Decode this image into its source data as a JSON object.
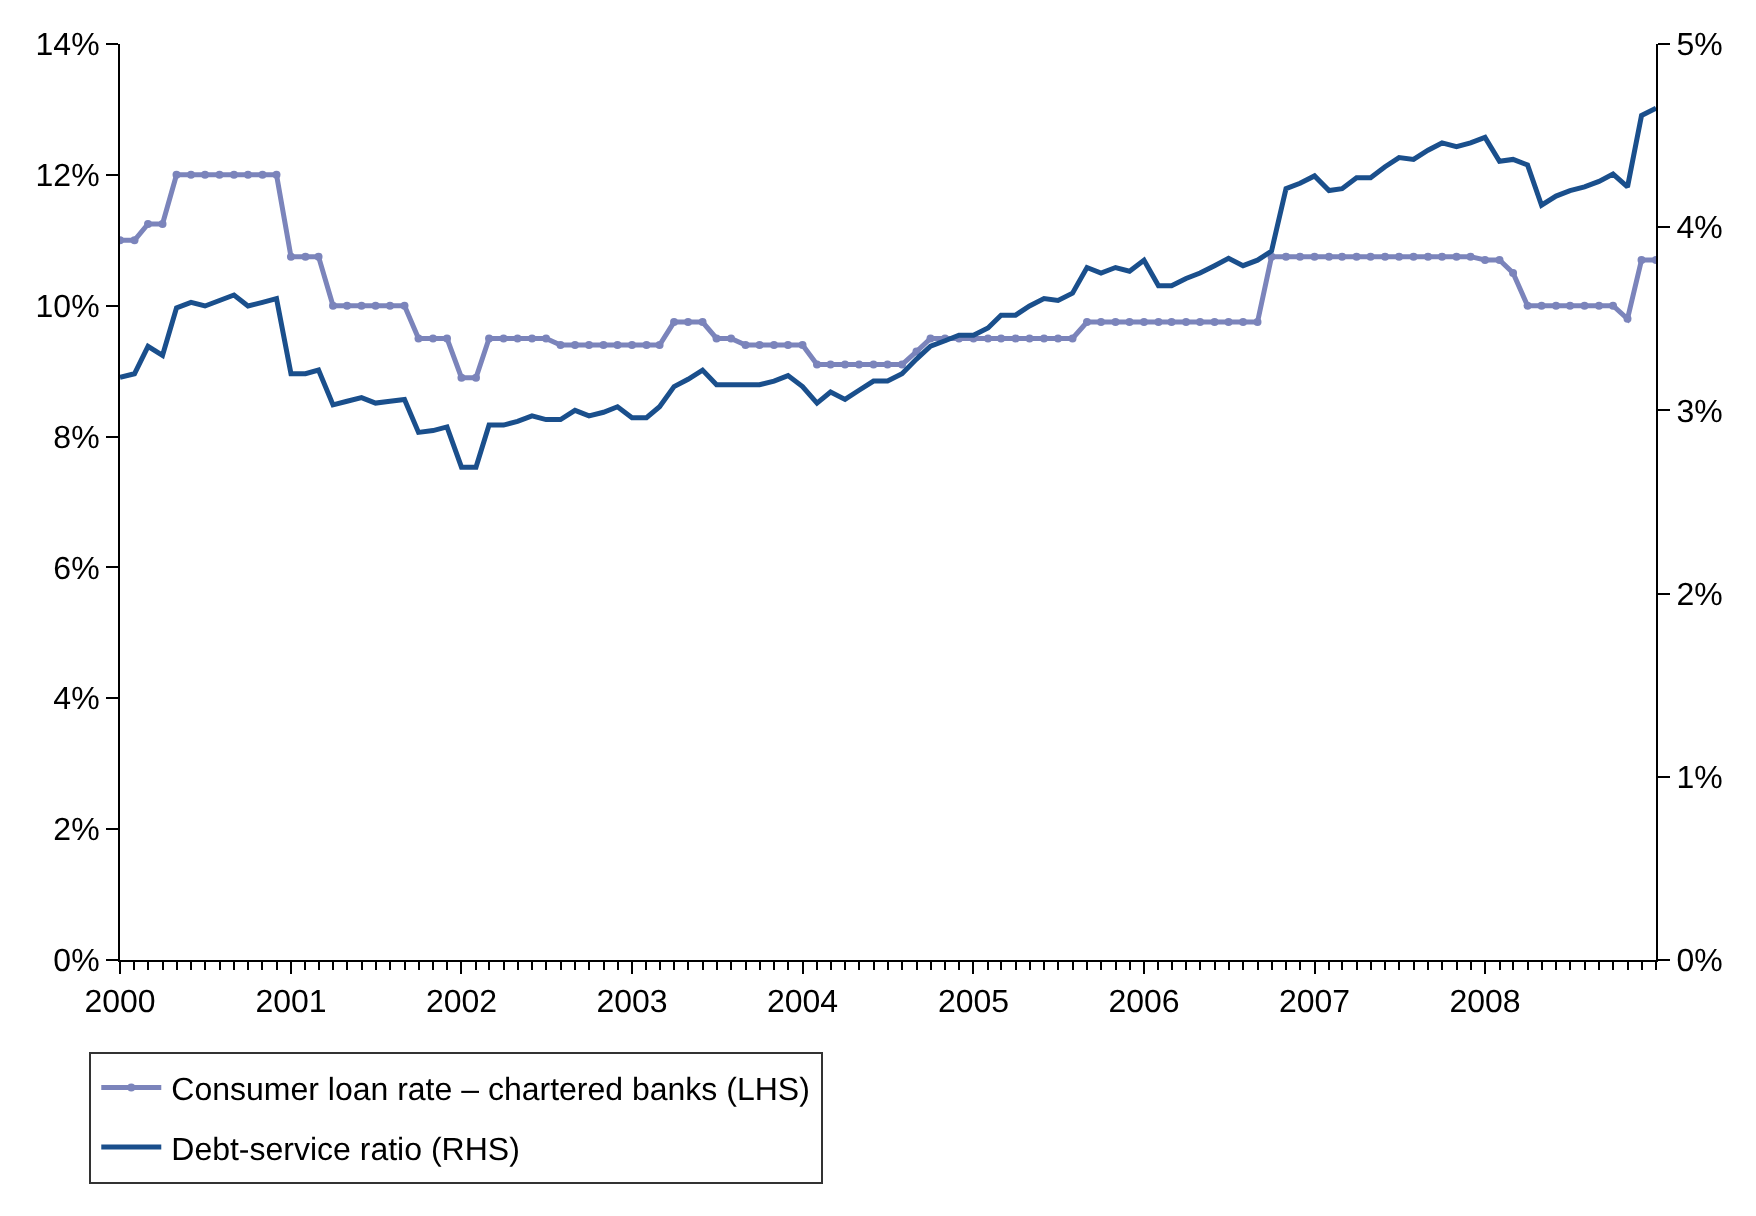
{
  "chart_data": {
    "type": "line",
    "x": [
      "2000-01",
      "2000-02",
      "2000-03",
      "2000-04",
      "2000-05",
      "2000-06",
      "2000-07",
      "2000-08",
      "2000-09",
      "2000-10",
      "2000-11",
      "2000-12",
      "2001-01",
      "2001-02",
      "2001-03",
      "2001-04",
      "2001-05",
      "2001-06",
      "2001-07",
      "2001-08",
      "2001-09",
      "2001-10",
      "2001-11",
      "2001-12",
      "2002-01",
      "2002-02",
      "2002-03",
      "2002-04",
      "2002-05",
      "2002-06",
      "2002-07",
      "2002-08",
      "2002-09",
      "2002-10",
      "2002-11",
      "2002-12",
      "2003-01",
      "2003-02",
      "2003-03",
      "2003-04",
      "2003-05",
      "2003-06",
      "2003-07",
      "2003-08",
      "2003-09",
      "2003-10",
      "2003-11",
      "2003-12",
      "2004-01",
      "2004-02",
      "2004-03",
      "2004-04",
      "2004-05",
      "2004-06",
      "2004-07",
      "2004-08",
      "2004-09",
      "2004-10",
      "2004-11",
      "2004-12",
      "2005-01",
      "2005-02",
      "2005-03",
      "2005-04",
      "2005-05",
      "2005-06",
      "2005-07",
      "2005-08",
      "2005-09",
      "2005-10",
      "2005-11",
      "2005-12",
      "2006-01",
      "2006-02",
      "2006-03",
      "2006-04",
      "2006-05",
      "2006-06",
      "2006-07",
      "2006-08",
      "2006-09",
      "2006-10",
      "2006-11",
      "2006-12",
      "2007-01",
      "2007-02",
      "2007-03",
      "2007-04",
      "2007-05",
      "2007-06",
      "2007-07",
      "2007-08",
      "2007-09",
      "2007-10",
      "2007-11",
      "2007-12",
      "2008-01",
      "2008-02",
      "2008-03",
      "2008-04",
      "2008-05",
      "2008-06",
      "2008-07",
      "2008-08",
      "2008-09",
      "2008-10",
      "2008-11",
      "2008-12",
      "2009-01"
    ],
    "series": [
      {
        "name": "Consumer loan rate – chartered banks (LHS)",
        "color": "#7b84bb",
        "marker": "circle",
        "values": [
          11.0,
          11.0,
          11.25,
          11.25,
          12.0,
          12.0,
          12.0,
          12.0,
          12.0,
          12.0,
          12.0,
          12.0,
          10.75,
          10.75,
          10.75,
          10.0,
          10.0,
          10.0,
          10.0,
          10.0,
          10.0,
          9.5,
          9.5,
          9.5,
          8.9,
          8.9,
          9.5,
          9.5,
          9.5,
          9.5,
          9.5,
          9.4,
          9.4,
          9.4,
          9.4,
          9.4,
          9.4,
          9.4,
          9.4,
          9.75,
          9.75,
          9.75,
          9.5,
          9.5,
          9.4,
          9.4,
          9.4,
          9.4,
          9.4,
          9.1,
          9.1,
          9.1,
          9.1,
          9.1,
          9.1,
          9.1,
          9.3,
          9.5,
          9.5,
          9.5,
          9.5,
          9.5,
          9.5,
          9.5,
          9.5,
          9.5,
          9.5,
          9.5,
          9.75,
          9.75,
          9.75,
          9.75,
          9.75,
          9.75,
          9.75,
          9.75,
          9.75,
          9.75,
          9.75,
          9.75,
          9.75,
          10.75,
          10.75,
          10.75,
          10.75,
          10.75,
          10.75,
          10.75,
          10.75,
          10.75,
          10.75,
          10.75,
          10.75,
          10.75,
          10.75,
          10.75,
          10.7,
          10.7,
          10.5,
          10.0,
          10.0,
          10.0,
          10.0,
          10.0,
          10.0,
          10.0,
          9.8,
          10.7,
          10.7
        ]
      },
      {
        "name": "Debt-service ratio (RHS)",
        "color": "#1a4f8c",
        "axis": "y2",
        "marker": "none",
        "values": [
          3.18,
          3.2,
          3.35,
          3.3,
          3.56,
          3.59,
          3.57,
          3.6,
          3.63,
          3.57,
          3.59,
          3.61,
          3.2,
          3.2,
          3.22,
          3.03,
          3.05,
          3.07,
          3.04,
          3.05,
          3.06,
          2.88,
          2.89,
          2.91,
          2.69,
          2.69,
          2.92,
          2.92,
          2.94,
          2.97,
          2.95,
          2.95,
          3.0,
          2.97,
          2.99,
          3.02,
          2.96,
          2.96,
          3.02,
          3.13,
          3.17,
          3.22,
          3.14,
          3.14,
          3.14,
          3.14,
          3.16,
          3.19,
          3.13,
          3.04,
          3.1,
          3.06,
          3.11,
          3.16,
          3.16,
          3.2,
          3.28,
          3.35,
          3.38,
          3.41,
          3.41,
          3.45,
          3.52,
          3.52,
          3.57,
          3.61,
          3.6,
          3.64,
          3.78,
          3.75,
          3.78,
          3.76,
          3.82,
          3.68,
          3.68,
          3.72,
          3.75,
          3.79,
          3.83,
          3.79,
          3.82,
          3.87,
          4.21,
          4.24,
          4.28,
          4.2,
          4.21,
          4.27,
          4.27,
          4.33,
          4.38,
          4.37,
          4.42,
          4.46,
          4.44,
          4.46,
          4.49,
          4.36,
          4.37,
          4.34,
          4.12,
          4.17,
          4.2,
          4.22,
          4.25,
          4.29,
          4.22,
          4.61,
          4.65
        ]
      }
    ],
    "xlim": [
      "2000-01",
      "2009-01"
    ],
    "xticks": [
      {
        "value": "2000-01",
        "label": "2000"
      },
      {
        "value": "2001-01",
        "label": "2001"
      },
      {
        "value": "2002-01",
        "label": "2002"
      },
      {
        "value": "2003-01",
        "label": "2003"
      },
      {
        "value": "2004-01",
        "label": "2004"
      },
      {
        "value": "2005-01",
        "label": "2005"
      },
      {
        "value": "2006-01",
        "label": "2006"
      },
      {
        "value": "2007-01",
        "label": "2007"
      },
      {
        "value": "2008-01",
        "label": "2008"
      }
    ],
    "ylim": [
      0,
      14
    ],
    "yticks": [
      {
        "value": 0,
        "label": "0%"
      },
      {
        "value": 2,
        "label": "2%"
      },
      {
        "value": 4,
        "label": "4%"
      },
      {
        "value": 6,
        "label": "6%"
      },
      {
        "value": 8,
        "label": "8%"
      },
      {
        "value": 10,
        "label": "10%"
      },
      {
        "value": 12,
        "label": "12%"
      },
      {
        "value": 14,
        "label": "14%"
      }
    ],
    "y2lim": [
      0,
      5
    ],
    "y2ticks": [
      {
        "value": 0,
        "label": "0%"
      },
      {
        "value": 1,
        "label": "1%"
      },
      {
        "value": 2,
        "label": "2%"
      },
      {
        "value": 3,
        "label": "3%"
      },
      {
        "value": 4,
        "label": "4%"
      },
      {
        "value": 5,
        "label": "5%"
      }
    ],
    "grid": false,
    "legend": "bottom left"
  }
}
